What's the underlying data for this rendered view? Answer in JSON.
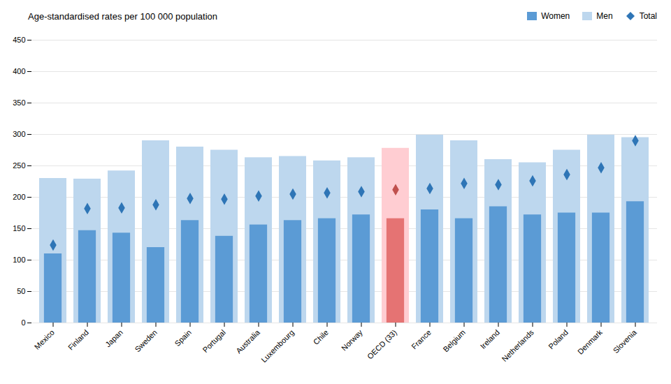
{
  "chart_data": {
    "type": "bar",
    "title": "Age-standardised rates per 100 000 population",
    "categories": [
      "Mexico",
      "Finland",
      "Japan",
      "Sweden",
      "Spain",
      "Portugal",
      "Australia",
      "Luxembourg",
      "Chile",
      "Norway",
      "OECD (33)",
      "France",
      "Belgium",
      "Ireland",
      "Netherlands",
      "Poland",
      "Denmark",
      "Slovenia"
    ],
    "series": [
      {
        "name": "Women",
        "type": "bar",
        "color": "#5b9bd5",
        "colors": [
          "#5b9bd5",
          "#5b9bd5",
          "#5b9bd5",
          "#5b9bd5",
          "#5b9bd5",
          "#5b9bd5",
          "#5b9bd5",
          "#5b9bd5",
          "#5b9bd5",
          "#5b9bd5",
          "#e57373",
          "#5b9bd5",
          "#5b9bd5",
          "#5b9bd5",
          "#5b9bd5",
          "#5b9bd5",
          "#5b9bd5",
          "#5b9bd5"
        ],
        "values": [
          110,
          147,
          143,
          120,
          163,
          138,
          156,
          163,
          166,
          172,
          166,
          180,
          166,
          185,
          172,
          175,
          175,
          193
        ]
      },
      {
        "name": "Men",
        "type": "bar",
        "color": "#bdd7ee",
        "colors": [
          "#bdd7ee",
          "#bdd7ee",
          "#bdd7ee",
          "#bdd7ee",
          "#bdd7ee",
          "#bdd7ee",
          "#bdd7ee",
          "#bdd7ee",
          "#bdd7ee",
          "#bdd7ee",
          "#ffcdd2",
          "#bdd7ee",
          "#bdd7ee",
          "#bdd7ee",
          "#bdd7ee",
          "#bdd7ee",
          "#bdd7ee",
          "#bdd7ee"
        ],
        "values": [
          230,
          229,
          242,
          290,
          280,
          275,
          263,
          265,
          258,
          263,
          278,
          299,
          290,
          260,
          255,
          275,
          299,
          295
        ]
      },
      {
        "name": "Total",
        "type": "scatter",
        "marker": "diamond",
        "color": "#2e75b6",
        "colors": [
          "#2e75b6",
          "#2e75b6",
          "#2e75b6",
          "#2e75b6",
          "#2e75b6",
          "#2e75b6",
          "#2e75b6",
          "#2e75b6",
          "#2e75b6",
          "#2e75b6",
          "#c0504d",
          "#2e75b6",
          "#2e75b6",
          "#2e75b6",
          "#2e75b6",
          "#2e75b6",
          "#2e75b6",
          "#2e75b6"
        ],
        "values": [
          124,
          182,
          183,
          188,
          198,
          197,
          202,
          205,
          207,
          209,
          212,
          214,
          222,
          220,
          226,
          236,
          247,
          290
        ]
      }
    ],
    "ylim": [
      0,
      450
    ],
    "yticks": [
      0,
      50,
      100,
      150,
      200,
      250,
      300,
      350,
      400,
      450
    ],
    "grid": true,
    "legend": "top"
  }
}
